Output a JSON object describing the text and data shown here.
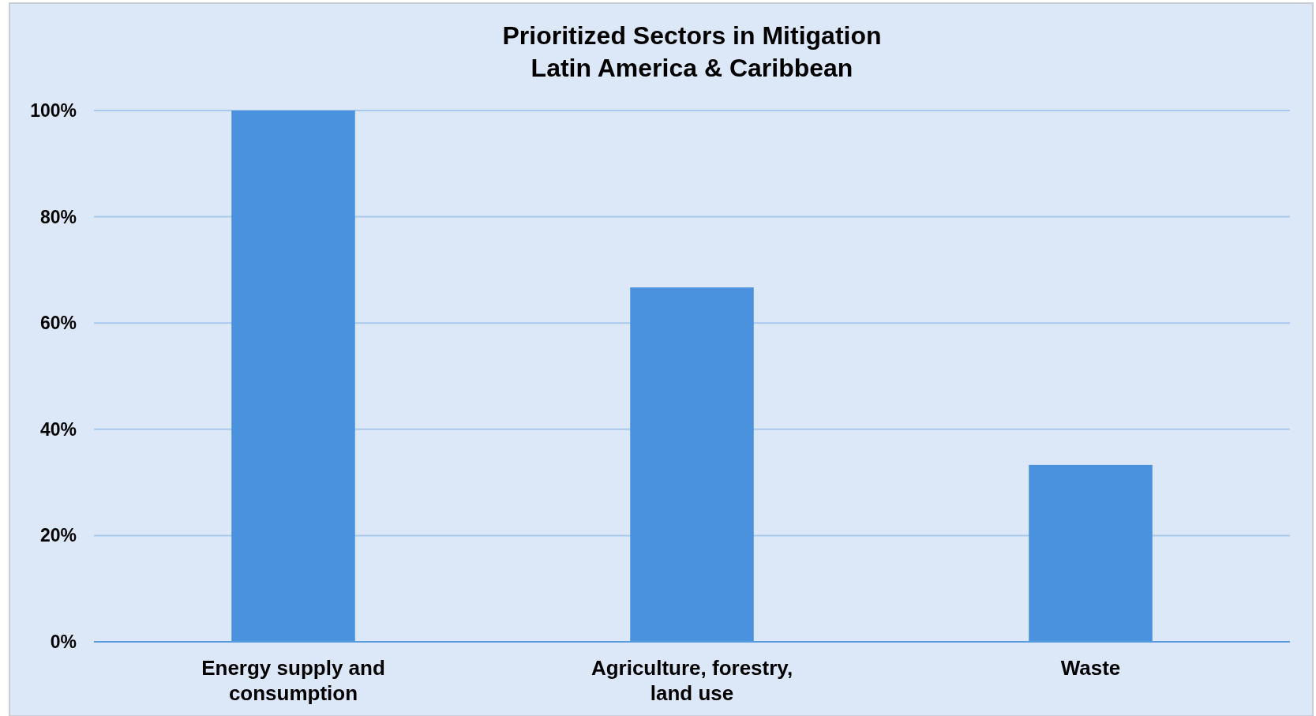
{
  "chart_data": {
    "type": "bar",
    "title": "Prioritized Sectors in Mitigation\nLatin America & Caribbean",
    "categories": [
      "Energy supply and\nconsumption",
      "Agriculture, forestry,\nland use",
      "Waste"
    ],
    "values": [
      100,
      66.7,
      33.3
    ],
    "color": "#4a92de",
    "ylim": [
      0,
      100
    ],
    "yticks": [
      {
        "value": 0,
        "label": "0%"
      },
      {
        "value": 20,
        "label": "20%"
      },
      {
        "value": 40,
        "label": "40%"
      },
      {
        "value": 60,
        "label": "60%"
      },
      {
        "value": 80,
        "label": "80%"
      },
      {
        "value": 100,
        "label": "100%"
      }
    ],
    "grid": "y"
  }
}
